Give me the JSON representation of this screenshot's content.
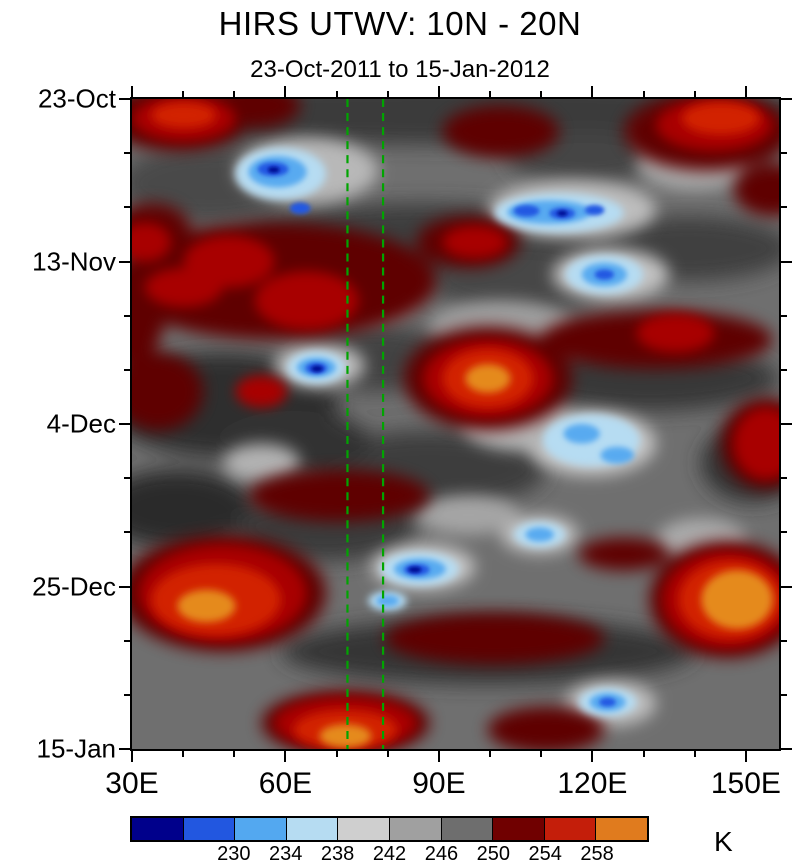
{
  "chart_data": {
    "type": "heatmap",
    "title": "HIRS UTWV: 10N - 20N",
    "subtitle": "23-Oct-2011 to 15-Jan-2012",
    "xlabel": "",
    "ylabel": "",
    "description": "Hovmoller (time vs longitude) filled-contour field of HIRS upper-tropospheric water vapor brightness temperature in K; blue cells are low values (~228-238 K), gray cells mid values (~238-250 K), dark red to orange cells high values (~250-260+ K).",
    "x_axis": {
      "unit": "degrees east",
      "range": [
        30,
        157
      ],
      "major_ticks": [
        {
          "label": "30E",
          "pos": 0
        },
        {
          "label": "60E",
          "pos": 23.72
        },
        {
          "label": "90E",
          "pos": 47.44
        },
        {
          "label": "120E",
          "pos": 71.16
        },
        {
          "label": "150E",
          "pos": 94.88
        }
      ],
      "minor_tick_pos": [
        7.91,
        15.81,
        31.63,
        39.53,
        55.35,
        63.26,
        79.07,
        86.98
      ]
    },
    "y_axis": {
      "start_date": "23-Oct-2011",
      "end_date": "15-Jan-2012",
      "major_tick_days": 21,
      "minor_tick_days": 7,
      "major_ticks": [
        {
          "label": "23-Oct",
          "pos": 0
        },
        {
          "label": "13-Nov",
          "pos": 25
        },
        {
          "label": "4-Dec",
          "pos": 50
        },
        {
          "label": "25-Dec",
          "pos": 75
        },
        {
          "label": "15-Jan",
          "pos": 100
        }
      ],
      "minor_tick_pos": [
        8.33,
        16.67,
        33.33,
        41.67,
        58.33,
        66.67,
        83.33,
        91.67
      ]
    },
    "colorbar": {
      "unit": "K",
      "levels": [
        230,
        234,
        238,
        242,
        246,
        250,
        254,
        258
      ],
      "tick_labels": [
        {
          "label": "230",
          "pos": 20
        },
        {
          "label": "234",
          "pos": 30
        },
        {
          "label": "238",
          "pos": 40
        },
        {
          "label": "242",
          "pos": 50
        },
        {
          "label": "246",
          "pos": 60
        },
        {
          "label": "250",
          "pos": 70
        },
        {
          "label": "254",
          "pos": 80
        },
        {
          "label": "258",
          "pos": 90
        }
      ],
      "colors": [
        "#00008B",
        "#2257E0",
        "#53A8F0",
        "#B6DCF2",
        "#CFCFCF",
        "#A0A0A0",
        "#6E6E6E",
        "#700000",
        "#C41E0A",
        "#E07B1E"
      ]
    },
    "reference_lines": {
      "color": "#00A500",
      "style": "dashed",
      "x_deg": [
        72,
        79
      ],
      "pos_pct": [
        33.3,
        38.8
      ]
    },
    "field": {
      "base_color": "#6f6f6f",
      "layers": [
        {
          "blur": 10,
          "blobs": [
            [
              50,
              2,
              58,
              5,
              "#3a3a3a"
            ],
            [
              12,
              13,
              14,
              6,
              "#484848"
            ],
            [
              45,
              22,
              28,
              6,
              "#3e3e3e"
            ],
            [
              86,
              23,
              16,
              5,
              "#404040"
            ],
            [
              14,
              47,
              18,
              8,
              "#2e2e2e"
            ],
            [
              7,
              63,
              12,
              6,
              "#2a2a2a"
            ],
            [
              46,
              57,
              18,
              6,
              "#3c3c3c"
            ],
            [
              80,
              43,
              20,
              5,
              "#383838"
            ],
            [
              55,
              85,
              32,
              5,
              "#343434"
            ],
            [
              30,
              66,
              14,
              5,
              "#3a3a3a"
            ],
            [
              96,
              56,
              8,
              6,
              "#303030"
            ],
            [
              25,
              53,
              12,
              5,
              "#323232"
            ],
            [
              70,
              9,
              12,
              4,
              "#454545"
            ],
            [
              38,
              40,
              12,
              5,
              "#424242"
            ],
            [
              60,
              28,
              14,
              5,
              "#474747"
            ]
          ]
        },
        {
          "blur": 8,
          "blobs": [
            [
              27,
              11,
              11,
              5,
              "#b8b8b8"
            ],
            [
              68,
              17,
              13,
              4.5,
              "#bdbdbd"
            ],
            [
              87,
              10,
              9,
              4,
              "#a9a9a9"
            ],
            [
              74,
              27,
              9,
              4,
              "#c2c2c2"
            ],
            [
              29,
              41,
              7,
              3.5,
              "#bdbdbd"
            ],
            [
              71,
              53,
              10,
              5,
              "#c5c5c5"
            ],
            [
              63,
              67,
              6,
              3,
              "#c0c0c0"
            ],
            [
              45,
              72,
              8,
              3.5,
              "#c6c6c6"
            ],
            [
              74,
              93,
              7,
              3.5,
              "#bfbfbf"
            ],
            [
              57,
              35,
              11,
              4,
              "#9f9f9f"
            ],
            [
              20,
              56,
              6,
              3,
              "#b2b2b2"
            ],
            [
              88,
              68,
              7,
              3.5,
              "#ababab"
            ],
            [
              60,
              50,
              9,
              4,
              "#b5b5b5"
            ],
            [
              84,
              6,
              6,
              3,
              "#9e9e9e"
            ],
            [
              36,
              31,
              8,
              3,
              "#8f8f8f"
            ],
            [
              52,
              64,
              8,
              3,
              "#a5a5a5"
            ]
          ]
        },
        {
          "blur": 8,
          "color": "#5e0000",
          "blobs": [
            [
              7,
              3,
              11,
              5
            ],
            [
              19,
              1,
              7,
              3.5
            ],
            [
              57,
              5,
              9,
              4
            ],
            [
              89,
              5,
              13,
              6
            ],
            [
              99,
              14,
              6,
              4
            ],
            [
              22,
              28,
              25,
              9
            ],
            [
              3,
              20,
              6,
              4
            ],
            [
              4,
              45,
              7,
              6
            ],
            [
              55,
              43,
              13,
              8
            ],
            [
              81,
              37,
              18,
              4.5
            ],
            [
              98,
              53,
              7,
              7
            ],
            [
              32,
              61,
              14,
              4
            ],
            [
              14,
              76,
              16,
              9
            ],
            [
              56,
              83,
              17,
              4
            ],
            [
              92,
              77,
              12,
              9
            ],
            [
              33,
              96,
              13,
              5
            ],
            [
              52,
              22,
              8,
              4
            ],
            [
              0,
              33,
              5,
              8
            ],
            [
              64,
              97,
              9,
              3.5
            ],
            [
              76,
              70,
              7,
              2.5
            ]
          ]
        },
        {
          "blur": 6,
          "color": "#a80000",
          "blobs": [
            [
              8,
              3,
              8,
              3.5
            ],
            [
              90,
              4,
              9,
              4
            ],
            [
              15,
              25,
              7,
              4
            ],
            [
              27,
              31,
              8,
              4.5
            ],
            [
              8,
              29,
              6,
              3
            ],
            [
              53,
              22,
              5,
              2.5
            ],
            [
              55,
              43,
              10,
              6
            ],
            [
              98,
              53,
              5,
              5.5
            ],
            [
              84,
              36,
              6,
              3
            ],
            [
              14,
              76,
              13,
              7.5
            ],
            [
              92,
              77,
              10,
              7.5
            ],
            [
              33,
              96,
              11,
              4
            ],
            [
              20,
              45,
              4,
              2.5
            ],
            [
              2,
              22,
              4,
              3
            ]
          ]
        },
        {
          "blur": 5,
          "color": "#d22006",
          "blobs": [
            [
              55,
              43,
              7,
              4.5
            ],
            [
              13,
              77,
              10,
              5.5
            ],
            [
              92.5,
              77,
              8,
              6
            ],
            [
              33,
              97,
              8,
              3
            ],
            [
              8,
              2.5,
              5,
              2
            ],
            [
              91,
              3,
              6,
              2.5
            ]
          ]
        },
        {
          "blur": 4,
          "color": "#e58a1e",
          "blobs": [
            [
              55,
              43,
              3.5,
              2.2
            ],
            [
              11.5,
              78,
              4.5,
              2.5
            ],
            [
              93.5,
              77,
              5.5,
              4.5
            ],
            [
              33,
              98,
              4,
              1.8
            ]
          ]
        },
        {
          "blur": 4,
          "color": "#b6dcf2",
          "blobs": [
            [
              23,
              11.5,
              7,
              4
            ],
            [
              66,
              17.5,
              10,
              3
            ],
            [
              73,
              27,
              6,
              3
            ],
            [
              28.5,
              41.3,
              4.5,
              2.5
            ],
            [
              71,
              52.5,
              7.5,
              4
            ],
            [
              63,
              67,
              4,
              2
            ],
            [
              44.5,
              72.3,
              6,
              2.6
            ],
            [
              73.5,
              92.8,
              4.5,
              2.2
            ],
            [
              39.5,
              77.2,
              3,
              1.5
            ]
          ]
        },
        {
          "blur": 3,
          "color": "#58aaf0",
          "blobs": [
            [
              22.5,
              11.2,
              4.5,
              2.4
            ],
            [
              64.5,
              17.4,
              6.5,
              1.8
            ],
            [
              73,
              27,
              3.5,
              1.8
            ],
            [
              28.5,
              41.3,
              3,
              1.5
            ],
            [
              69.5,
              51.5,
              2.8,
              1.5
            ],
            [
              75,
              54.8,
              2.6,
              1.3
            ],
            [
              44.5,
              72.3,
              4,
              1.6
            ],
            [
              73.5,
              92.8,
              2.8,
              1.4
            ],
            [
              63,
              67,
              2.2,
              1.1
            ],
            [
              39.5,
              77.2,
              1.8,
              0.9
            ]
          ]
        },
        {
          "blur": 2,
          "color": "#2458e2",
          "blobs": [
            [
              21.8,
              10.8,
              2.4,
              1.1
            ],
            [
              26,
              16.8,
              1.6,
              0.9
            ],
            [
              61,
              17.2,
              2,
              0.9
            ],
            [
              66.5,
              17.6,
              2,
              0.9
            ],
            [
              71.5,
              17.1,
              1.5,
              0.8
            ],
            [
              73,
              27,
              1.5,
              0.8
            ],
            [
              28.5,
              41.4,
              1.7,
              0.9
            ],
            [
              44,
              72.4,
              2,
              0.9
            ],
            [
              73.5,
              92.8,
              1.3,
              0.7
            ]
          ]
        },
        {
          "blur": 1.5,
          "color": "#000e96",
          "blobs": [
            [
              28.6,
              41.5,
              0.9,
              0.5
            ],
            [
              43.7,
              72.4,
              1,
              0.5
            ],
            [
              21.9,
              10.9,
              0.9,
              0.5
            ],
            [
              66.5,
              17.6,
              0.8,
              0.45
            ]
          ]
        }
      ]
    }
  }
}
